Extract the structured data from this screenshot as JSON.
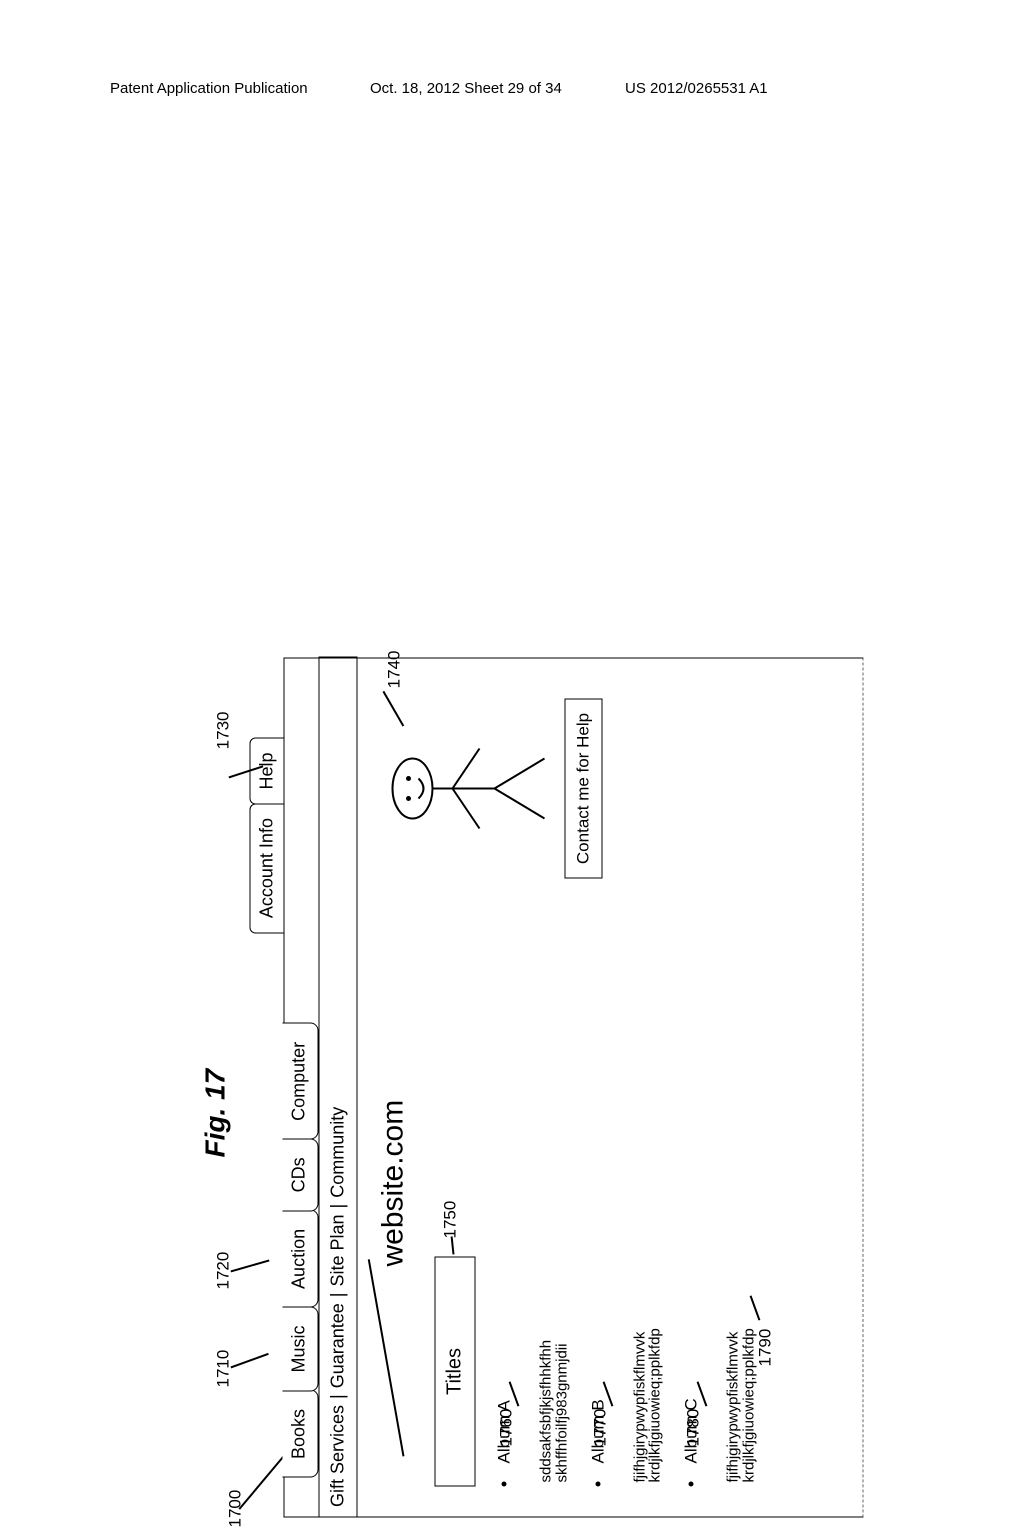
{
  "page_header": {
    "left": "Patent Application Publication",
    "center": "Oct. 18, 2012  Sheet 29 of 34",
    "right": "US 2012/0265531 A1"
  },
  "figure_label": "Fig. 17",
  "top_tabs": [
    "Account Info",
    "Help"
  ],
  "cat_tabs": [
    "Books",
    "Music",
    "Auction",
    "CDs",
    "Computer"
  ],
  "subnav": [
    "Gift Services",
    "Guarantee",
    "Site Plan",
    "Community"
  ],
  "site_name": "website.com",
  "titles_label": "Titles",
  "albums": [
    {
      "title": "Album A",
      "desc": "sddsakfsbfjkjsfhhkfhh\nskhffhfoilfj983gnmjdii"
    },
    {
      "title": "Album B",
      "desc": "fjifhjgirypwypfiskflmvvk\nkrdjlkfjgiuowieq;pplkfdp"
    },
    {
      "title": "Album C",
      "desc": "fjifhjgirypwypfiskflmvvk\nkrdjlkfjgiuowieq;pplkfdp"
    }
  ],
  "help_button": "Contact me for Help",
  "refs": {
    "r1700": "1700",
    "r1710": "1710",
    "r1720": "1720",
    "r1730": "1730",
    "r1740": "1740",
    "r1750": "1750",
    "r1760": "1760",
    "r1770": "1770",
    "r1780": "1780",
    "r1790": "1790"
  },
  "colors": {
    "line": "#000000",
    "bg": "#ffffff"
  }
}
